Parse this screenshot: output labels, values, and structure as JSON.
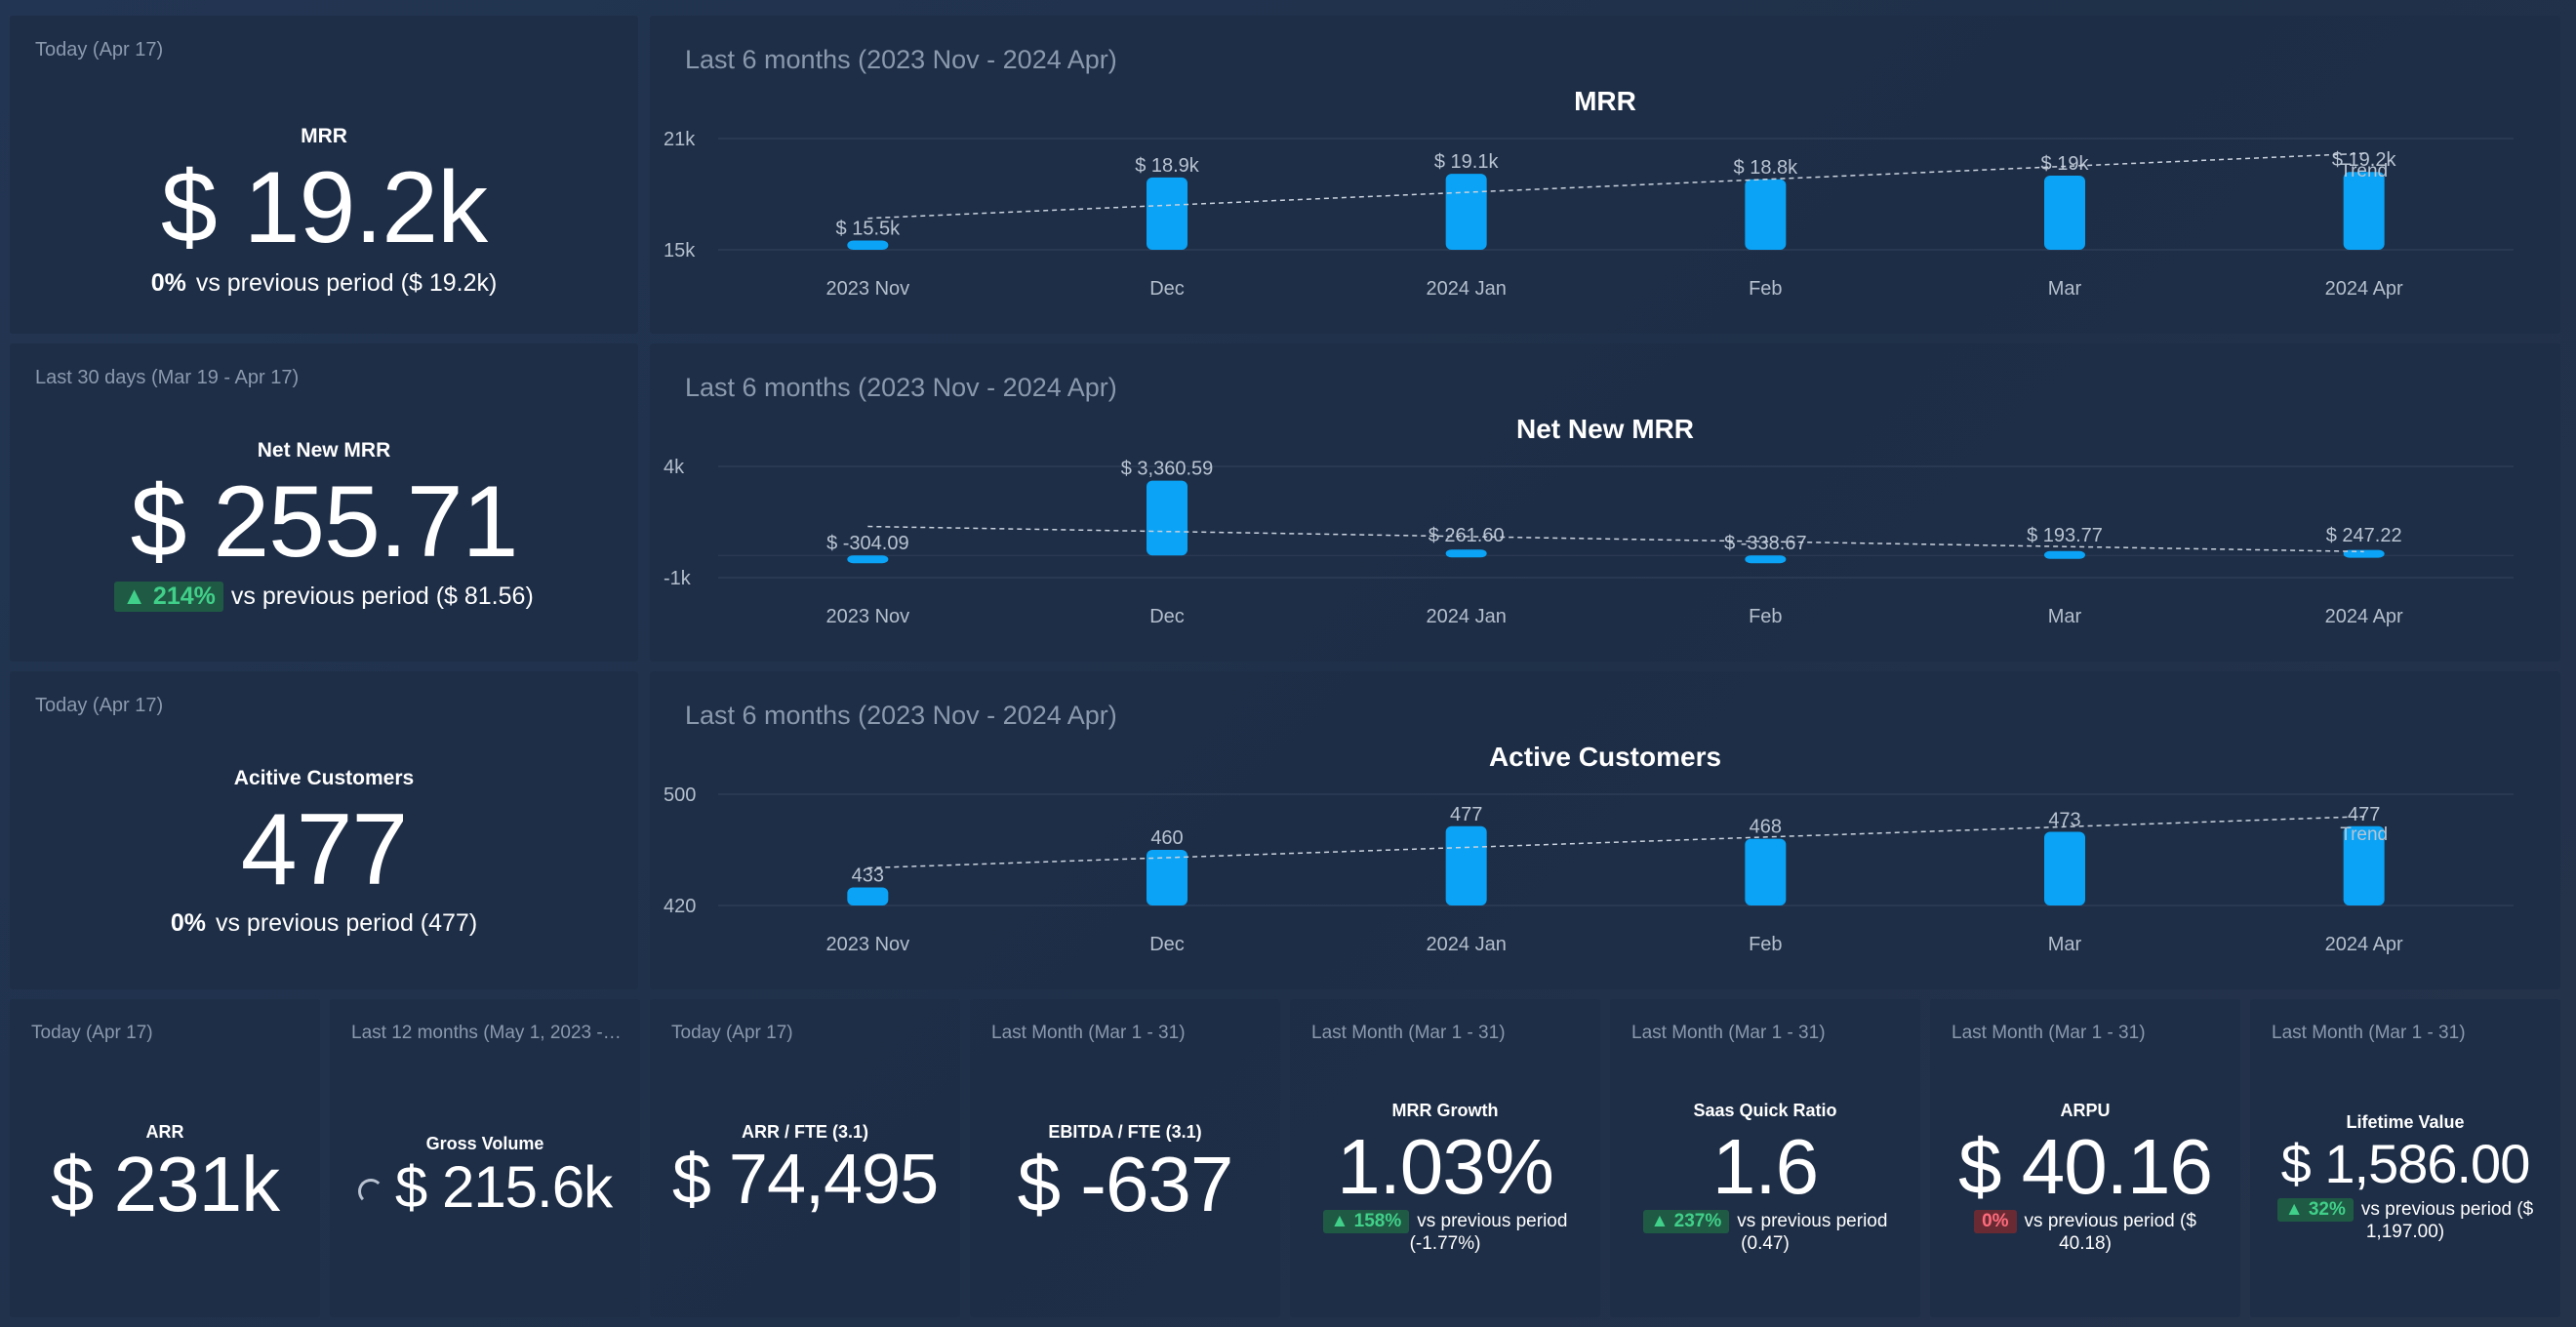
{
  "mrr_kpi": {
    "period": "Today (Apr 17)",
    "title": "MRR",
    "value": "$ 19.2k",
    "change": "0%",
    "compare": "vs previous period ($ 19.2k)"
  },
  "netnew_kpi": {
    "period": "Last 30 days (Mar 19 - Apr 17)",
    "title": "Net New MRR",
    "value": "$ 255.71",
    "change": "▲ 214%",
    "compare": "vs previous period ($ 81.56)"
  },
  "customers_kpi": {
    "period": "Today (Apr 17)",
    "title": "Acitive Customers",
    "value": "477",
    "change": "0%",
    "compare": "vs previous period (477)"
  },
  "colors": {
    "bar": "#0aa3f5",
    "trend": "#c9d2de",
    "positive": "#40d089",
    "negative": "#ff6b7b"
  },
  "chart_data": [
    {
      "type": "bar",
      "period": "Last 6 months (2023 Nov - 2024 Apr)",
      "title": "MRR",
      "categories": [
        "2023 Nov",
        "Dec",
        "2024 Jan",
        "Feb",
        "Mar",
        "2024 Apr"
      ],
      "values": [
        15500,
        18900,
        19100,
        18800,
        19000,
        19200
      ],
      "labels": [
        "$ 15.5k",
        "$ 18.9k",
        "$ 19.1k",
        "$ 18.8k",
        "$ 19k",
        "$ 19.2k"
      ],
      "ylim": [
        15000,
        21000
      ],
      "yticks": [
        {
          "v": 21000,
          "label": "21k"
        },
        {
          "v": 15000,
          "label": "15k"
        }
      ],
      "trend": [
        16700,
        20200
      ],
      "trend_label": "Trend"
    },
    {
      "type": "bar",
      "period": "Last 6 months (2023 Nov - 2024 Apr)",
      "title": "Net New MRR",
      "categories": [
        "2023 Nov",
        "Dec",
        "2024 Jan",
        "Feb",
        "Mar",
        "2024 Apr"
      ],
      "values": [
        -304.09,
        3360.59,
        261.6,
        -338.67,
        193.77,
        247.22
      ],
      "labels": [
        "$ -304.09",
        "$ 3,360.59",
        "$ 261.60",
        "$ -338.67",
        "$ 193.77",
        "$ 247.22"
      ],
      "ylim": [
        -1000,
        4000
      ],
      "yticks": [
        {
          "v": 4000,
          "label": "4k"
        },
        {
          "v": -1000,
          "label": "-1k"
        }
      ],
      "trend": [
        1300,
        170
      ],
      "trend_label": ""
    },
    {
      "type": "bar",
      "period": "Last 6 months (2023 Nov - 2024 Apr)",
      "title": "Active Customers",
      "categories": [
        "2023 Nov",
        "Dec",
        "2024 Jan",
        "Feb",
        "Mar",
        "2024 Apr"
      ],
      "values": [
        433,
        460,
        477,
        468,
        473,
        477
      ],
      "labels": [
        "433",
        "460",
        "477",
        "468",
        "473",
        "477"
      ],
      "ylim": [
        420,
        500
      ],
      "yticks": [
        {
          "v": 500,
          "label": "500"
        },
        {
          "v": 420,
          "label": "420"
        }
      ],
      "trend": [
        447,
        484
      ],
      "trend_label": "Trend"
    }
  ],
  "small_kpis": [
    {
      "period": "Today (Apr 17)",
      "title": "ARR",
      "value": "$ 231k",
      "change": "",
      "change_type": "",
      "compare": "",
      "compare2": "",
      "spinner": false
    },
    {
      "period": "Last 12 months (May 1, 2023 - A...",
      "title": "Gross Volume",
      "value": "$ 215.6k",
      "change": "",
      "change_type": "",
      "compare": "",
      "compare2": "",
      "spinner": true
    },
    {
      "period": "Today (Apr 17)",
      "title": "ARR / FTE (3.1)",
      "value": "$ 74,495",
      "change": "",
      "change_type": "",
      "compare": "",
      "compare2": "",
      "spinner": false
    },
    {
      "period": "Last Month (Mar 1 - 31)",
      "title": "EBITDA / FTE (3.1)",
      "value": "$ -637",
      "change": "",
      "change_type": "",
      "compare": "",
      "compare2": "",
      "spinner": false
    },
    {
      "period": "Last Month (Mar 1 - 31)",
      "title": "MRR Growth",
      "value": "1.03%",
      "change": "▲ 158%",
      "change_type": "up",
      "compare": "vs previous period",
      "compare2": "(-1.77%)",
      "spinner": false
    },
    {
      "period": "Last Month (Mar 1 - 31)",
      "title": "Saas Quick Ratio",
      "value": "1.6",
      "change": "▲ 237%",
      "change_type": "up",
      "compare": "vs previous period",
      "compare2": "(0.47)",
      "spinner": false
    },
    {
      "period": "Last Month (Mar 1 - 31)",
      "title": "ARPU",
      "value": "$ 40.16",
      "change": "0%",
      "change_type": "down",
      "compare": "vs previous period ($",
      "compare2": "40.18)",
      "spinner": false
    },
    {
      "period": "Last Month (Mar 1 - 31)",
      "title": "Lifetime Value",
      "value": "$ 1,586.00",
      "change": "▲ 32%",
      "change_type": "up",
      "compare": "vs previous period ($",
      "compare2": "1,197.00)",
      "spinner": false
    }
  ]
}
